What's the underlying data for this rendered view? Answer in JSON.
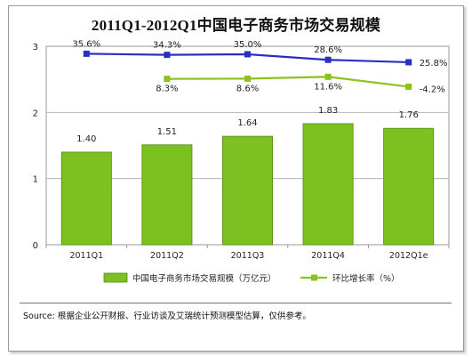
{
  "title": "2011Q1-2012Q1中国电子商务市场交易规模",
  "source": "Source: 根据企业公开财报、行业访谈及艾瑞统计预测模型估算，仅供参考。",
  "colors": {
    "bar": "#7cc11f",
    "bar_edge": "#4f8a10",
    "line_yoy": "#2a2fc0",
    "line_qoq": "#8cc21c"
  },
  "chart_data": {
    "type": "bar",
    "categories": [
      "2011Q1",
      "2011Q2",
      "2011Q3",
      "2011Q4",
      "2012Q1e"
    ],
    "ylim": [
      0,
      3
    ],
    "yticks": [
      "0",
      "1",
      "2",
      "3"
    ],
    "grid": true,
    "series": [
      {
        "name": "中国电子商务市场交易规模（万亿元）",
        "kind": "bar",
        "values": [
          1.4,
          1.51,
          1.64,
          1.83,
          1.76
        ],
        "labels": [
          "1.40",
          "1.51",
          "1.64",
          "1.83",
          "1.76"
        ]
      },
      {
        "name": "",
        "kind": "line",
        "color": "#2a2fc0",
        "values": [
          35.6,
          34.3,
          35.0,
          28.6,
          25.8
        ],
        "labels": [
          "35.6%",
          "34.3%",
          "35.0%",
          "28.6%",
          "25.8%"
        ]
      },
      {
        "name": "环比增长率（%）",
        "kind": "line",
        "color": "#8cc21c",
        "values": [
          null,
          8.3,
          8.6,
          11.6,
          -4.2
        ],
        "labels": [
          "",
          "8.3%",
          "8.6%",
          "11.6%",
          "-4.2%"
        ]
      }
    ],
    "legend": "bottom"
  }
}
